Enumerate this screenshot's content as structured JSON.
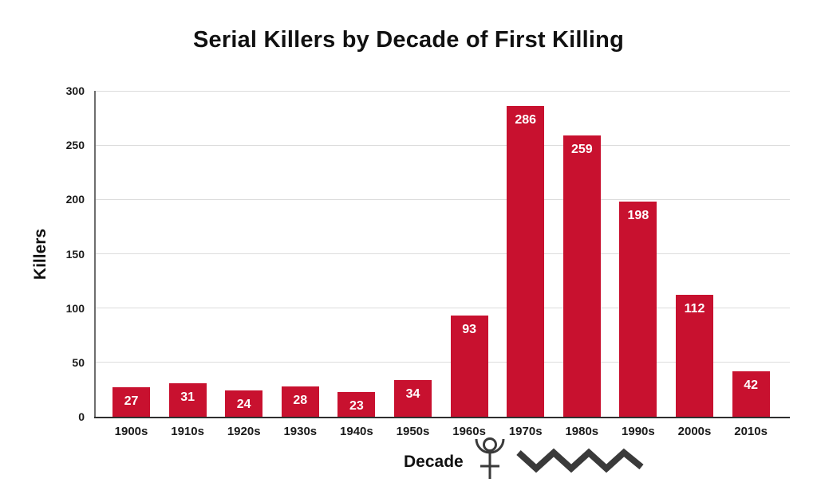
{
  "chart_data": {
    "type": "bar",
    "title": "Serial Killers by Decade of First Killing",
    "categories": [
      "1900s",
      "1910s",
      "1920s",
      "1930s",
      "1940s",
      "1950s",
      "1960s",
      "1970s",
      "1980s",
      "1990s",
      "2000s",
      "2010s"
    ],
    "values": [
      27,
      31,
      24,
      28,
      23,
      34,
      93,
      286,
      259,
      198,
      112,
      42
    ],
    "xlabel": "Decade",
    "ylabel": "Killers",
    "ylim": [
      0,
      300
    ],
    "yticks": [
      0,
      50,
      100,
      150,
      200,
      250,
      300
    ],
    "grid": "horizontal",
    "legend": "none",
    "bar_color": "#C8112F",
    "value_label_color": "#FFFFFF",
    "gridline_color": "#DCDCDC",
    "axis_text_color": "#1A1A1A",
    "annotations": [
      "pluto-symbol",
      "zigzag-line"
    ]
  },
  "icons": {
    "pluto": "pluto-symbol-icon",
    "zigzag": "zigzag-line-icon",
    "icon_color": "#3A3A3A"
  }
}
